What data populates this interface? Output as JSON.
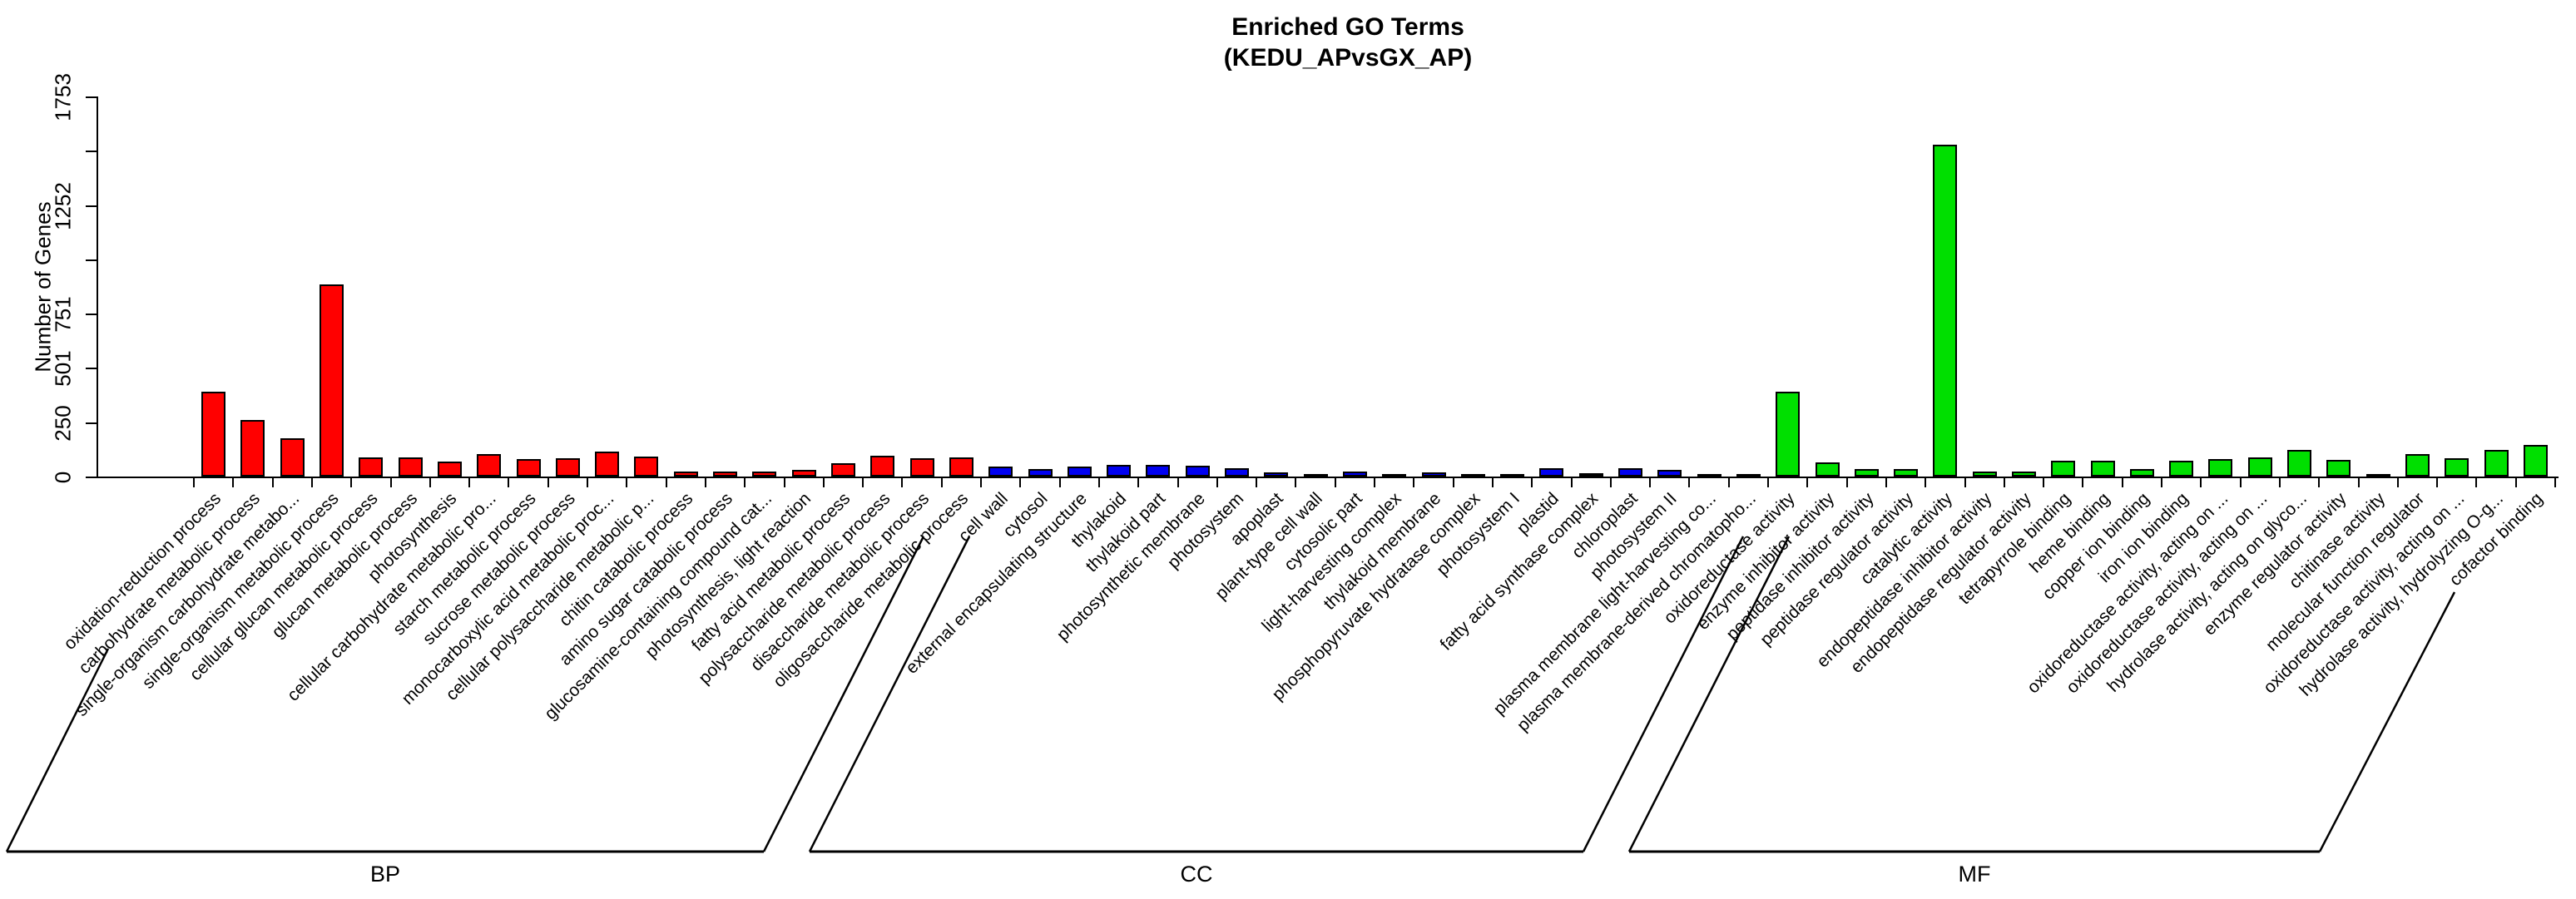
{
  "chart_data": {
    "type": "bar",
    "title": "Enriched GO Terms",
    "subtitle": "(KEDU_APvsGX_AP)",
    "xlabel": "",
    "ylabel": "Number of Genes",
    "ylim": [
      0,
      1753
    ],
    "y_ticks": [
      0,
      250,
      501,
      751,
      1002,
      1252,
      1503,
      1753
    ],
    "y_tick_labels_shown": [
      "0",
      "250",
      "501",
      "751",
      "",
      "1252",
      "",
      "1753"
    ],
    "grid": false,
    "legend_position": "none",
    "bar_border_color": "#000000",
    "group_axis_labels": [
      "BP",
      "CC",
      "MF"
    ],
    "series": [
      {
        "name": "BP",
        "color": "#ff0000",
        "categories": [
          "oxidation-reduction process",
          "carbohydrate metabolic process",
          "single-organism carbohydrate metabo...",
          "single-organism metabolic process",
          "cellular glucan metabolic process",
          "glucan metabolic process",
          "photosynthesis",
          "cellular carbohydrate metabolic pro...",
          "starch metabolic process",
          "sucrose metabolic process",
          "monocarboxylic acid metabolic proc...",
          "cellular polysaccharide metabolic p...",
          "chitin catabolic process",
          "amino sugar catabolic process",
          "glucosamine-containing compound cat...",
          "photosynthesis, light reaction",
          "fatty acid metabolic process",
          "polysaccharide metabolic process",
          "disaccharide metabolic process",
          "oligosaccharide metabolic process"
        ],
        "values": [
          390,
          262,
          178,
          885,
          88,
          88,
          70,
          105,
          80,
          85,
          115,
          92,
          25,
          25,
          22,
          30,
          60,
          95,
          85,
          90
        ]
      },
      {
        "name": "CC",
        "color": "#0000f0",
        "categories": [
          "cell wall",
          "cytosol",
          "external encapsulating structure",
          "thylakoid",
          "thylakoid part",
          "photosynthetic membrane",
          "photosystem",
          "apoplast",
          "plant-type cell wall",
          "cytosolic part",
          "light-harvesting complex",
          "thylakoid membrane",
          "phosphopyruvate hydratase complex",
          "photosystem I",
          "plastid",
          "fatty acid synthase complex",
          "chloroplast",
          "photosystem II",
          "plasma membrane light-harvesting co...",
          "plasma membrane-derived chromatopho..."
        ],
        "values": [
          45,
          35,
          46,
          55,
          53,
          50,
          40,
          20,
          12,
          23,
          12,
          18,
          8,
          10,
          40,
          15,
          40,
          30,
          10,
          10
        ]
      },
      {
        "name": "MF",
        "color": "#00df00",
        "categories": [
          "oxidoreductase activity",
          "enzyme inhibitor activity",
          "peptidase inhibitor activity",
          "peptidase regulator activity",
          "catalytic activity",
          "endopeptidase inhibitor activity",
          "endopeptidase regulator activity",
          "tetrapyrrole binding",
          "heme binding",
          "copper ion binding",
          "iron ion binding",
          "oxidoreductase activity, acting on ...",
          "oxidoreductase activity, acting on ...",
          "hydrolase activity, acting on glyco...",
          "enzyme regulator activity",
          "chitinase activity",
          "molecular function regulator",
          "oxidoreductase activity, acting on ...",
          "hydrolase activity, hydrolyzing O-g...",
          "cofactor binding"
        ],
        "values": [
          390,
          65,
          33,
          35,
          1530,
          25,
          22,
          73,
          73,
          33,
          73,
          80,
          88,
          123,
          78,
          8,
          105,
          85,
          123,
          145
        ]
      }
    ]
  }
}
